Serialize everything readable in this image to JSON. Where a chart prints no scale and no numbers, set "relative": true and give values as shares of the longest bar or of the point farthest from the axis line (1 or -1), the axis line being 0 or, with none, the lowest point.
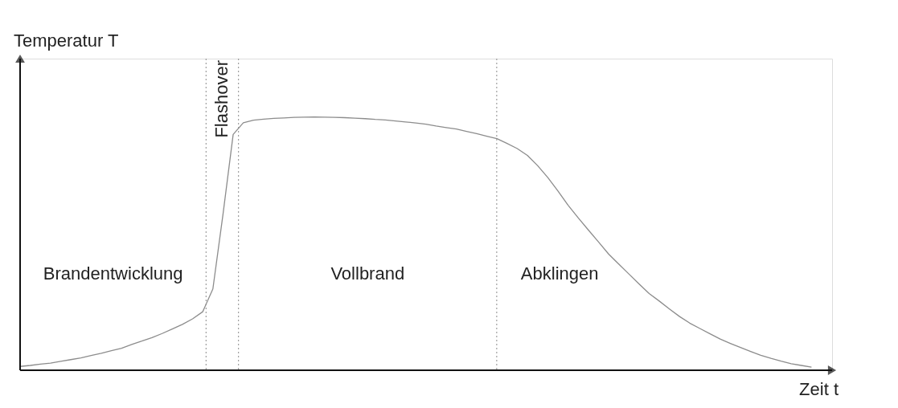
{
  "chart_data": {
    "type": "line",
    "relative": true,
    "xlabel": "Zeit t",
    "ylabel": "Temperatur T",
    "marker": "none",
    "line_style": "solid",
    "categories": [
      null,
      null,
      null,
      null,
      null,
      null,
      null,
      null,
      null,
      null,
      null,
      null,
      null,
      null,
      null,
      null,
      null,
      null,
      null,
      null,
      null,
      null,
      null,
      null,
      null,
      null,
      null,
      null,
      null,
      null,
      null,
      null,
      null,
      null,
      null,
      null,
      null,
      null,
      null,
      null,
      null,
      null,
      null,
      null,
      null,
      null,
      null,
      null,
      null,
      null,
      null,
      null,
      null,
      null,
      null,
      null,
      null,
      null,
      null,
      null,
      null,
      null,
      null,
      null,
      null,
      null,
      null,
      null,
      null,
      null,
      null,
      null,
      null,
      null,
      null,
      null,
      null,
      null,
      null
    ],
    "series": [
      {
        "color": "#8c8c8c",
        "values": [
          0.015,
          0.019,
          0.024,
          0.028,
          0.035,
          0.042,
          0.049,
          0.058,
          0.067,
          0.077,
          0.087,
          0.102,
          0.115,
          0.129,
          0.145,
          0.163,
          0.181,
          0.203,
          0.231,
          0.321,
          0.616,
          0.931,
          0.977,
          0.987,
          0.991,
          0.994,
          0.996,
          0.998,
          0.999,
          1,
          0.999,
          0.998,
          0.997,
          0.995,
          0.993,
          0.99,
          0.988,
          0.984,
          0.98,
          0.976,
          0.971,
          0.964,
          0.958,
          0.952,
          0.943,
          0.934,
          0.924,
          0.914,
          0.895,
          0.875,
          0.848,
          0.808,
          0.761,
          0.708,
          0.652,
          0.602,
          0.554,
          0.507,
          0.459,
          0.419,
          0.38,
          0.341,
          0.303,
          0.273,
          0.242,
          0.212,
          0.186,
          0.165,
          0.144,
          0.123,
          0.106,
          0.09,
          0.074,
          0.059,
          0.047,
          0.036,
          0.026,
          0.019,
          0.012
        ]
      }
    ],
    "annotations": [
      "Brandentwicklung",
      "Flashover",
      "Vollbrand",
      "Abklingen"
    ]
  }
}
